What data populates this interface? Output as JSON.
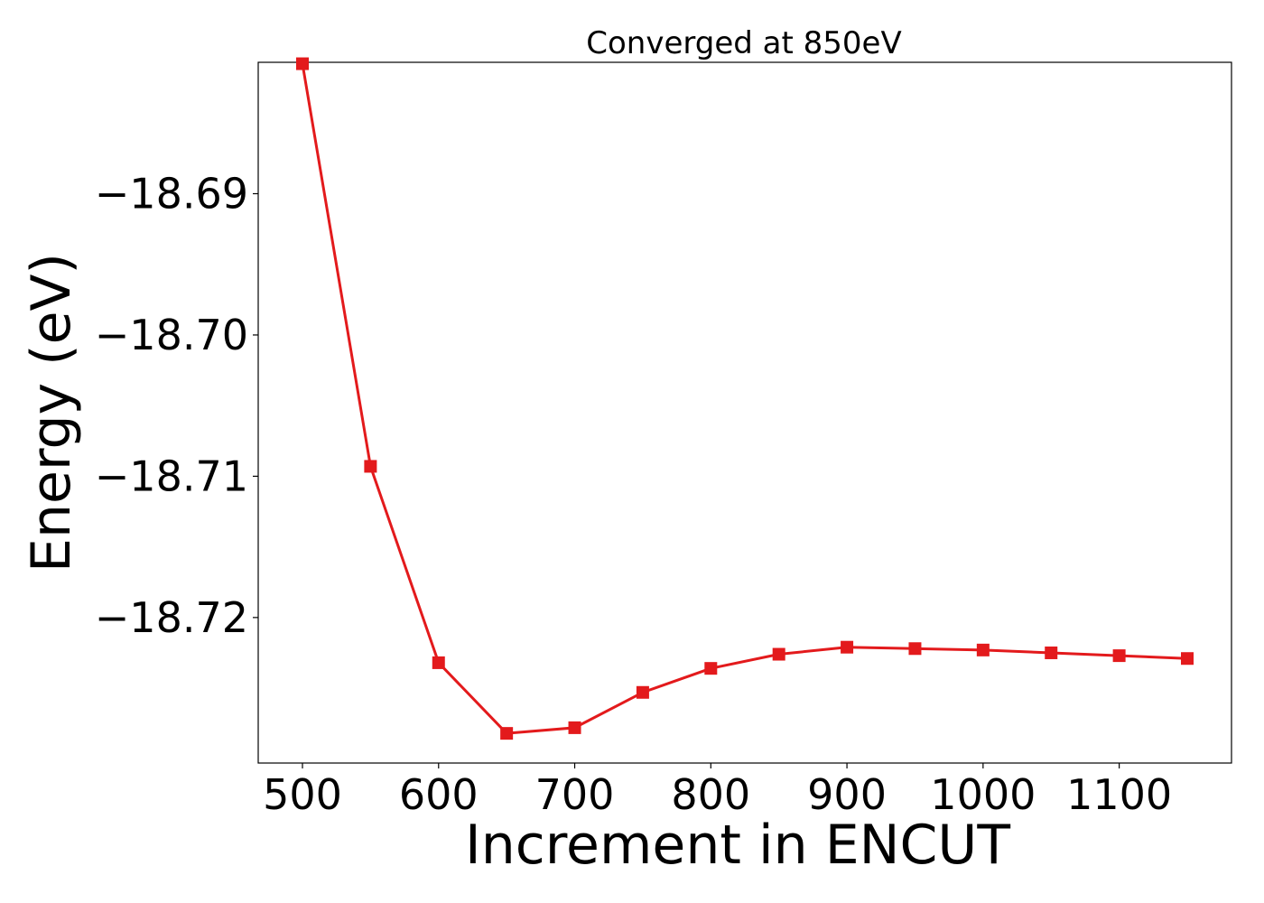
{
  "chart_data": {
    "type": "line",
    "title": "Converged at 850eV",
    "xlabel": "Increment in ENCUT",
    "ylabel": "Energy (eV)",
    "x": [
      500,
      550,
      600,
      650,
      700,
      750,
      800,
      850,
      900,
      950,
      1000,
      1050,
      1100,
      1150
    ],
    "series": [
      {
        "values": [
          -18.6808,
          -18.7093,
          -18.7232,
          -18.7282,
          -18.7278,
          -18.7253,
          -18.7236,
          -18.7226,
          -18.7221,
          -18.7222,
          -18.7223,
          -18.7225,
          -18.7227,
          -18.7229
        ],
        "color": "#e31a1c",
        "marker": "square"
      }
    ],
    "xticks": [
      500,
      600,
      700,
      800,
      900,
      1000,
      1100
    ],
    "xtick_labels": [
      "500",
      "600",
      "700",
      "800",
      "900",
      "1000",
      "1100"
    ],
    "yticks": [
      -18.69,
      -18.7,
      -18.71,
      -18.72
    ],
    "ytick_labels": [
      "−18.69",
      "−18.70",
      "−18.71",
      "−18.72"
    ],
    "xlim": [
      467.5,
      1182.5
    ],
    "ylim": [
      -18.7303,
      -18.6807
    ],
    "grid": false
  }
}
